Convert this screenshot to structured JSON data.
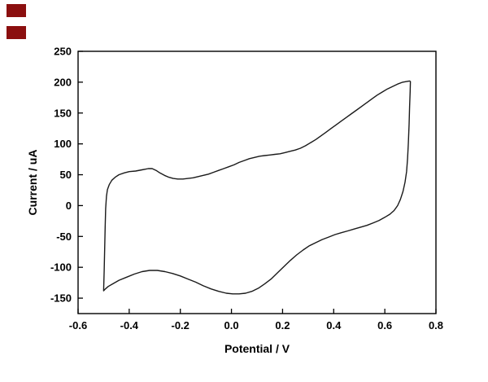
{
  "decorations": {
    "marker_color": "#8b0f0f"
  },
  "chart_data": {
    "type": "line",
    "title": "",
    "xlabel": "Potential / V",
    "ylabel": "Current / uA",
    "xlim": [
      -0.6,
      0.8
    ],
    "ylim": [
      -175,
      250
    ],
    "x_ticks": [
      -0.6,
      -0.4,
      -0.2,
      0.0,
      0.2,
      0.4,
      0.6,
      0.8
    ],
    "x_tick_labels": [
      "-0.6",
      "-0.4",
      "-0.2",
      "0.0",
      "0.2",
      "0.4",
      "0.6",
      "0.8"
    ],
    "y_ticks": [
      -150,
      -100,
      -50,
      0,
      50,
      100,
      150,
      200,
      250
    ],
    "y_tick_labels": [
      "-150",
      "-100",
      "-50",
      "0",
      "50",
      "100",
      "150",
      "200",
      "250"
    ],
    "grid": false,
    "legend": false,
    "line_color": "#1a1a1a",
    "series": [
      {
        "name": "cyclic-voltammogram-loop",
        "points": [
          [
            -0.5,
            -138
          ],
          [
            -0.498,
            -105
          ],
          [
            -0.496,
            -70
          ],
          [
            -0.494,
            -35
          ],
          [
            -0.492,
            -5
          ],
          [
            -0.489,
            15
          ],
          [
            -0.485,
            26
          ],
          [
            -0.478,
            34
          ],
          [
            -0.468,
            41
          ],
          [
            -0.455,
            46
          ],
          [
            -0.44,
            50
          ],
          [
            -0.42,
            53
          ],
          [
            -0.4,
            55
          ],
          [
            -0.375,
            56
          ],
          [
            -0.35,
            58
          ],
          [
            -0.325,
            60
          ],
          [
            -0.31,
            60
          ],
          [
            -0.295,
            57
          ],
          [
            -0.28,
            53
          ],
          [
            -0.262,
            49
          ],
          [
            -0.245,
            46
          ],
          [
            -0.228,
            44
          ],
          [
            -0.21,
            43
          ],
          [
            -0.19,
            43
          ],
          [
            -0.17,
            44
          ],
          [
            -0.15,
            45
          ],
          [
            -0.13,
            47
          ],
          [
            -0.11,
            49
          ],
          [
            -0.09,
            51
          ],
          [
            -0.07,
            54
          ],
          [
            -0.05,
            57
          ],
          [
            -0.03,
            60
          ],
          [
            -0.01,
            63
          ],
          [
            0.01,
            66
          ],
          [
            0.03,
            70
          ],
          [
            0.05,
            73
          ],
          [
            0.07,
            76
          ],
          [
            0.09,
            78
          ],
          [
            0.11,
            80
          ],
          [
            0.13,
            81
          ],
          [
            0.15,
            82
          ],
          [
            0.17,
            83
          ],
          [
            0.19,
            84
          ],
          [
            0.21,
            86
          ],
          [
            0.23,
            88
          ],
          [
            0.25,
            90
          ],
          [
            0.27,
            93
          ],
          [
            0.29,
            97
          ],
          [
            0.31,
            102
          ],
          [
            0.33,
            107
          ],
          [
            0.35,
            113
          ],
          [
            0.37,
            119
          ],
          [
            0.39,
            125
          ],
          [
            0.41,
            131
          ],
          [
            0.43,
            137
          ],
          [
            0.45,
            143
          ],
          [
            0.47,
            149
          ],
          [
            0.49,
            155
          ],
          [
            0.51,
            161
          ],
          [
            0.53,
            167
          ],
          [
            0.55,
            173
          ],
          [
            0.57,
            179
          ],
          [
            0.59,
            184
          ],
          [
            0.61,
            189
          ],
          [
            0.63,
            193
          ],
          [
            0.65,
            197
          ],
          [
            0.67,
            200
          ],
          [
            0.685,
            201
          ],
          [
            0.697,
            202
          ],
          [
            0.7,
            201
          ],
          [
            0.699,
            185
          ],
          [
            0.697,
            160
          ],
          [
            0.695,
            132
          ],
          [
            0.692,
            102
          ],
          [
            0.689,
            76
          ],
          [
            0.685,
            55
          ],
          [
            0.679,
            38
          ],
          [
            0.671,
            23
          ],
          [
            0.661,
            10
          ],
          [
            0.65,
            0
          ],
          [
            0.636,
            -8
          ],
          [
            0.62,
            -14
          ],
          [
            0.6,
            -19
          ],
          [
            0.578,
            -24
          ],
          [
            0.555,
            -28
          ],
          [
            0.53,
            -32
          ],
          [
            0.505,
            -35
          ],
          [
            0.48,
            -38
          ],
          [
            0.455,
            -41
          ],
          [
            0.43,
            -44
          ],
          [
            0.405,
            -47
          ],
          [
            0.38,
            -51
          ],
          [
            0.355,
            -55
          ],
          [
            0.33,
            -60
          ],
          [
            0.305,
            -65
          ],
          [
            0.28,
            -72
          ],
          [
            0.255,
            -80
          ],
          [
            0.23,
            -89
          ],
          [
            0.205,
            -99
          ],
          [
            0.18,
            -109
          ],
          [
            0.155,
            -119
          ],
          [
            0.13,
            -127
          ],
          [
            0.105,
            -134
          ],
          [
            0.08,
            -139
          ],
          [
            0.055,
            -142
          ],
          [
            0.03,
            -143
          ],
          [
            0.005,
            -143
          ],
          [
            -0.02,
            -142
          ],
          [
            -0.05,
            -139
          ],
          [
            -0.08,
            -135
          ],
          [
            -0.11,
            -130
          ],
          [
            -0.14,
            -124
          ],
          [
            -0.17,
            -119
          ],
          [
            -0.2,
            -114
          ],
          [
            -0.23,
            -110
          ],
          [
            -0.26,
            -107
          ],
          [
            -0.29,
            -105
          ],
          [
            -0.32,
            -105
          ],
          [
            -0.35,
            -107
          ],
          [
            -0.38,
            -111
          ],
          [
            -0.41,
            -116
          ],
          [
            -0.44,
            -121
          ],
          [
            -0.465,
            -127
          ],
          [
            -0.482,
            -131
          ],
          [
            -0.493,
            -135
          ],
          [
            -0.5,
            -138
          ]
        ]
      }
    ]
  }
}
